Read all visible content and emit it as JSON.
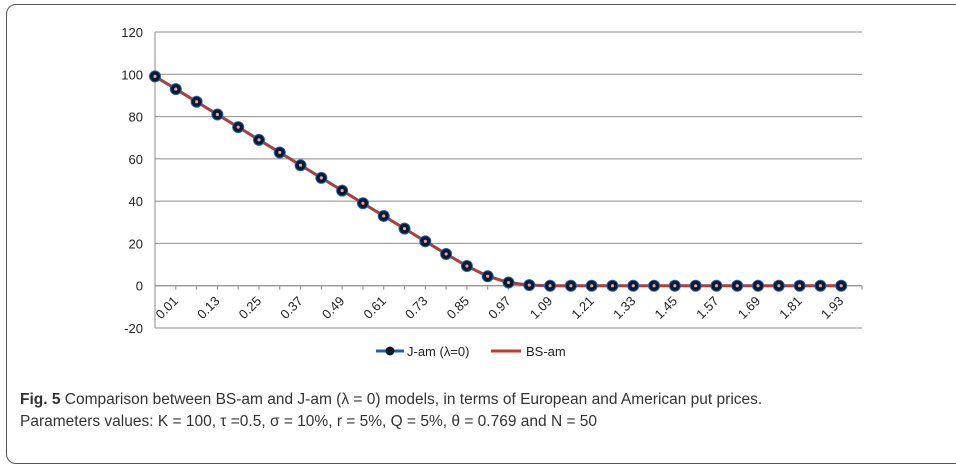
{
  "chart_data": {
    "type": "line",
    "x_tick_labels": [
      "0.01",
      "0.13",
      "0.25",
      "0.37",
      "0.49",
      "0.61",
      "0.73",
      "0.85",
      "0.97",
      "1.09",
      "1.21",
      "1.33",
      "1.45",
      "1.57",
      "1.69",
      "1.81",
      "1.93"
    ],
    "x": [
      0.01,
      0.07,
      0.13,
      0.19,
      0.25,
      0.31,
      0.37,
      0.43,
      0.49,
      0.55,
      0.61,
      0.67,
      0.73,
      0.79,
      0.85,
      0.91,
      0.97,
      1.03,
      1.09,
      1.15,
      1.21,
      1.27,
      1.33,
      1.39,
      1.45,
      1.51,
      1.57,
      1.63,
      1.69,
      1.75,
      1.81,
      1.87,
      1.93,
      1.99
    ],
    "series": [
      {
        "name": "J-am (λ=0)",
        "color": "#1f5fb4",
        "marker_color": "#0a1a2e",
        "values": [
          99,
          93,
          87,
          81,
          75,
          69,
          63,
          57,
          51,
          45,
          39,
          33,
          27,
          21,
          15,
          9.3,
          4.5,
          1.5,
          0.3,
          0,
          0,
          0,
          0,
          0,
          0,
          0,
          0,
          0,
          0,
          0,
          0,
          0,
          0,
          0
        ]
      },
      {
        "name": "BS-am",
        "color": "#c0392b",
        "values": [
          99,
          93,
          87,
          81,
          75,
          69,
          63,
          57,
          51,
          45,
          39,
          33,
          27,
          21,
          15,
          9.3,
          4.5,
          1.5,
          0.3,
          0,
          0,
          0,
          0,
          0,
          0,
          0,
          0,
          0,
          0,
          0,
          0,
          0,
          0,
          0
        ]
      }
    ],
    "y_ticks": [
      -20,
      0,
      20,
      40,
      60,
      80,
      100,
      120
    ],
    "ylim": [
      -20,
      120
    ],
    "grid": "horizontal",
    "legend_position": "bottom"
  },
  "caption": {
    "figure_label": "Fig. 5",
    "line1": "Comparison between BS-am and J-am (λ = 0) models, in terms of European and American put prices.",
    "line2": "Parameters values: K = 100, τ =0.5, σ = 10%, r = 5%, Q = 5%, θ = 0.769 and N = 50"
  }
}
